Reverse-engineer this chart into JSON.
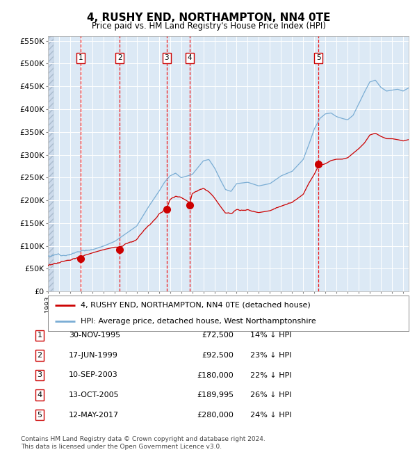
{
  "title": "4, RUSHY END, NORTHAMPTON, NN4 0TE",
  "subtitle": "Price paid vs. HM Land Registry's House Price Index (HPI)",
  "ylim": [
    0,
    560000
  ],
  "yticks": [
    0,
    50000,
    100000,
    150000,
    200000,
    250000,
    300000,
    350000,
    400000,
    450000,
    500000,
    550000
  ],
  "ytick_labels": [
    "£0",
    "£50K",
    "£100K",
    "£150K",
    "£200K",
    "£250K",
    "£300K",
    "£350K",
    "£400K",
    "£450K",
    "£500K",
    "£550K"
  ],
  "bg_color": "#dce9f5",
  "grid_color": "#ffffff",
  "red_line_color": "#cc0000",
  "blue_line_color": "#7aadd4",
  "marker_color": "#cc0000",
  "dashed_line_color": "#ee0000",
  "transactions": [
    {
      "label": "1",
      "date_x": 1995.92,
      "price": 72500
    },
    {
      "label": "2",
      "date_x": 1999.46,
      "price": 92500
    },
    {
      "label": "3",
      "date_x": 2003.7,
      "price": 180000
    },
    {
      "label": "4",
      "date_x": 2005.79,
      "price": 189995
    },
    {
      "label": "5",
      "date_x": 2017.36,
      "price": 280000
    }
  ],
  "legend_entries": [
    "4, RUSHY END, NORTHAMPTON, NN4 0TE (detached house)",
    "HPI: Average price, detached house, West Northamptonshire"
  ],
  "table_data": [
    [
      "1",
      "30-NOV-1995",
      "£72,500",
      "14% ↓ HPI"
    ],
    [
      "2",
      "17-JUN-1999",
      "£92,500",
      "23% ↓ HPI"
    ],
    [
      "3",
      "10-SEP-2003",
      "£180,000",
      "22% ↓ HPI"
    ],
    [
      "4",
      "13-OCT-2005",
      "£189,995",
      "26% ↓ HPI"
    ],
    [
      "5",
      "12-MAY-2017",
      "£280,000",
      "24% ↓ HPI"
    ]
  ],
  "footer": "Contains HM Land Registry data © Crown copyright and database right 2024.\nThis data is licensed under the Open Government Licence v3.0.",
  "xmin": 1993.0,
  "xmax": 2025.5,
  "hpi_key_x": [
    1993.0,
    1994.0,
    1995.0,
    1996.0,
    1997.0,
    1998.0,
    1999.0,
    2000.0,
    2001.0,
    2002.0,
    2003.0,
    2003.5,
    2004.0,
    2004.5,
    2005.0,
    2006.0,
    2007.0,
    2007.5,
    2008.0,
    2008.5,
    2009.0,
    2009.5,
    2010.0,
    2011.0,
    2012.0,
    2013.0,
    2014.0,
    2015.0,
    2016.0,
    2016.5,
    2017.0,
    2017.5,
    2018.0,
    2018.5,
    2019.0,
    2019.5,
    2020.0,
    2020.5,
    2021.0,
    2021.5,
    2022.0,
    2022.5,
    2023.0,
    2023.5,
    2024.0,
    2024.5,
    2025.0,
    2025.5
  ],
  "hpi_key_y": [
    78000,
    82000,
    87000,
    93000,
    100000,
    108000,
    118000,
    135000,
    152000,
    192000,
    228000,
    248000,
    262000,
    268000,
    258000,
    265000,
    295000,
    298000,
    280000,
    255000,
    232000,
    228000,
    245000,
    248000,
    240000,
    245000,
    262000,
    272000,
    298000,
    330000,
    365000,
    388000,
    398000,
    400000,
    392000,
    388000,
    385000,
    395000,
    420000,
    445000,
    468000,
    472000,
    456000,
    448000,
    450000,
    452000,
    448000,
    455000
  ],
  "red_key_x": [
    1993.0,
    1994.0,
    1995.0,
    1995.5,
    1995.92,
    1996.5,
    1997.0,
    1998.0,
    1999.0,
    1999.46,
    2000.0,
    2001.0,
    2002.0,
    2003.0,
    2003.7,
    2004.0,
    2004.5,
    2005.0,
    2005.79,
    2006.0,
    2006.5,
    2007.0,
    2007.5,
    2008.0,
    2008.5,
    2009.0,
    2009.5,
    2010.0,
    2011.0,
    2012.0,
    2013.0,
    2014.0,
    2015.0,
    2016.0,
    2016.5,
    2017.0,
    2017.36,
    2018.0,
    2018.5,
    2019.0,
    2019.5,
    2020.0,
    2020.5,
    2021.0,
    2021.5,
    2022.0,
    2022.5,
    2023.0,
    2023.5,
    2024.0,
    2024.5,
    2025.0,
    2025.5
  ],
  "red_key_y": [
    57000,
    61000,
    66000,
    69000,
    72500,
    76000,
    80000,
    87000,
    92500,
    92500,
    100000,
    112000,
    140000,
    168000,
    180000,
    198000,
    205000,
    202000,
    189995,
    210000,
    218000,
    222000,
    215000,
    205000,
    188000,
    172000,
    170000,
    180000,
    182000,
    178000,
    182000,
    192000,
    200000,
    218000,
    242000,
    262000,
    280000,
    285000,
    292000,
    295000,
    295000,
    298000,
    308000,
    318000,
    330000,
    348000,
    352000,
    345000,
    340000,
    340000,
    338000,
    335000,
    338000
  ]
}
